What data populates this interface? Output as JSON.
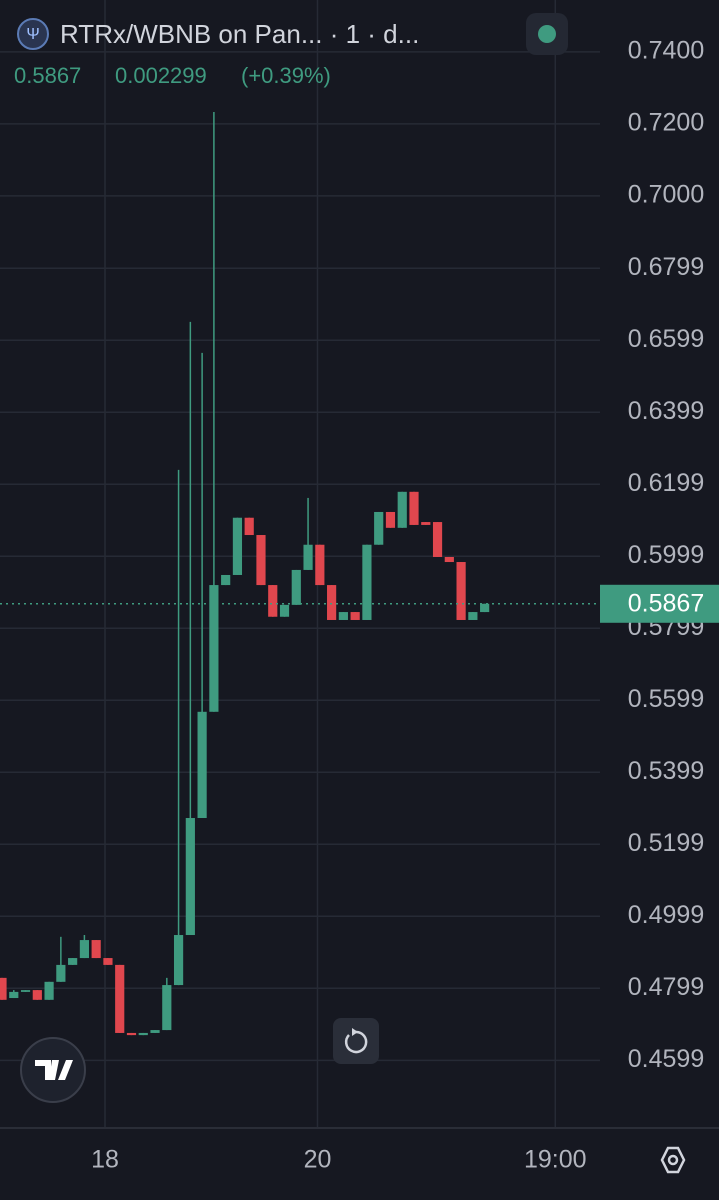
{
  "chart_data": {
    "type": "candlestick",
    "title": "RTRx/WBNB on Pan... · 1 · d...",
    "header_values": [
      "0.5867",
      "0.002299",
      "(+0.39%)"
    ],
    "open": [
      0.4828,
      0.4772,
      0.4789,
      0.4794,
      0.4767,
      0.4817,
      0.4864,
      0.4883,
      0.4933,
      0.4883,
      0.4864,
      0.4675,
      0.4669,
      0.4675,
      0.4683,
      0.4808,
      0.4947,
      0.5272,
      0.5567,
      0.5919,
      0.5947,
      0.6106,
      0.6058,
      0.5919,
      0.5831,
      0.5864,
      0.5961,
      0.6031,
      0.5919,
      0.5822,
      0.5844,
      0.5822,
      0.6031,
      0.6122,
      0.6078,
      0.6178,
      0.6094,
      0.6094,
      0.5997,
      0.5983,
      0.5822,
      0.5844
    ],
    "high": [
      0.4828,
      0.4794,
      0.4794,
      0.4794,
      0.4817,
      0.4942,
      0.4883,
      0.4947,
      0.4933,
      0.4883,
      0.4864,
      0.4675,
      0.4675,
      0.4683,
      0.4828,
      0.6239,
      0.665,
      0.6564,
      0.7233,
      0.5947,
      0.6106,
      0.6106,
      0.6058,
      0.5919,
      0.5864,
      0.5961,
      0.6161,
      0.6031,
      0.5919,
      0.5844,
      0.5844,
      0.6031,
      0.6122,
      0.6122,
      0.6178,
      0.6178,
      0.6094,
      0.6094,
      0.5997,
      0.5983,
      0.5844,
      0.5867
    ],
    "low": [
      0.4767,
      0.4772,
      0.4789,
      0.4767,
      0.4767,
      0.4817,
      0.4864,
      0.4883,
      0.4883,
      0.4864,
      0.4675,
      0.4669,
      0.4669,
      0.4675,
      0.4683,
      0.4808,
      0.4947,
      0.5272,
      0.5567,
      0.5919,
      0.5947,
      0.6058,
      0.5919,
      0.5831,
      0.5831,
      0.5864,
      0.5961,
      0.5919,
      0.5822,
      0.5822,
      0.5822,
      0.5822,
      0.6031,
      0.6078,
      0.6078,
      0.6086,
      0.6086,
      0.5997,
      0.5983,
      0.5822,
      0.5822,
      0.5844
    ],
    "close": [
      0.4767,
      0.4789,
      0.4794,
      0.4767,
      0.4817,
      0.4864,
      0.4883,
      0.4933,
      0.4883,
      0.4864,
      0.4675,
      0.4669,
      0.4675,
      0.4683,
      0.4808,
      0.4947,
      0.5272,
      0.5567,
      0.5919,
      0.5947,
      0.6106,
      0.6058,
      0.5919,
      0.5831,
      0.5864,
      0.5961,
      0.6031,
      0.5919,
      0.5822,
      0.5844,
      0.5822,
      0.6031,
      0.6122,
      0.6078,
      0.6178,
      0.6086,
      0.6086,
      0.5997,
      0.5983,
      0.5822,
      0.5844,
      0.5867
    ],
    "up_color": "#3f9b80",
    "down_color": "#e0474e",
    "last_price": 0.5867,
    "ylim": [
      0.4411,
      0.7544
    ],
    "yticks": [
      {
        "value": 0.74,
        "label": "0.7400"
      },
      {
        "value": 0.72,
        "label": "0.7200"
      },
      {
        "value": 0.7,
        "label": "0.7000"
      },
      0.6799,
      0.6599,
      0.6399,
      0.6199,
      0.5999,
      0.5799,
      0.5599,
      0.5399,
      0.5199,
      0.4999,
      0.4799,
      0.4599
    ],
    "xlim": [
      -0.17,
      50.8
    ],
    "xticks": [
      {
        "value": 8.75,
        "label": "18"
      },
      {
        "value": 26.8,
        "label": "20"
      },
      {
        "value": 47.0,
        "label": "19:00"
      }
    ],
    "grid": true
  }
}
